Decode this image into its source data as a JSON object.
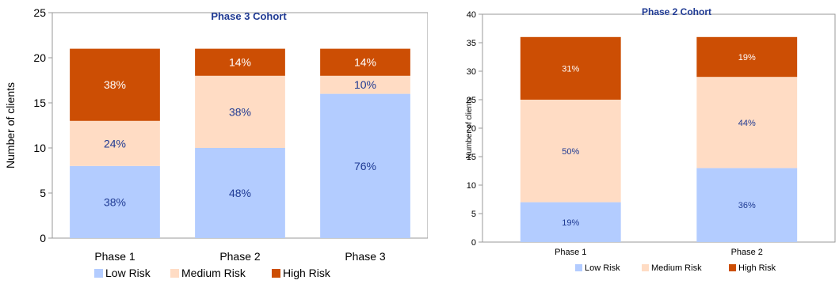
{
  "chart_data": [
    {
      "type": "bar",
      "stacked": true,
      "title": "Phase 3 Cohort",
      "ylabel": "Number of clients",
      "xlabel": "",
      "ylim": [
        0,
        25
      ],
      "yticks": [
        0,
        5,
        10,
        15,
        20,
        25
      ],
      "grid": false,
      "legend_position": "bottom",
      "categories": [
        "Phase 1",
        "Phase 2",
        "Phase 3"
      ],
      "series": [
        {
          "name": "Low Risk",
          "color": "#b3ccff",
          "values": [
            8,
            10,
            16
          ],
          "labels": [
            "38%",
            "48%",
            "76%"
          ]
        },
        {
          "name": "Medium Risk",
          "color": "#ffdcc4",
          "values": [
            5,
            8,
            2
          ],
          "labels": [
            "24%",
            "38%",
            "10%"
          ]
        },
        {
          "name": "High Risk",
          "color": "#cc4e04",
          "values": [
            8,
            3,
            3
          ],
          "labels": [
            "38%",
            "14%",
            "14%"
          ]
        }
      ],
      "label_colors": {
        "Low Risk": "#1f3a93",
        "Medium Risk": "#1f3a93",
        "High Risk": "#ffffff"
      }
    },
    {
      "type": "bar",
      "stacked": true,
      "title": "Phase 2 Cohort",
      "ylabel": "Number of clients",
      "xlabel": "",
      "ylim": [
        0,
        40
      ],
      "yticks": [
        0,
        5,
        10,
        15,
        20,
        25,
        30,
        35,
        40
      ],
      "grid": false,
      "legend_position": "bottom",
      "categories": [
        "Phase 1",
        "Phase 2"
      ],
      "series": [
        {
          "name": "Low Risk",
          "color": "#b3ccff",
          "values": [
            7,
            13
          ],
          "labels": [
            "19%",
            "36%"
          ]
        },
        {
          "name": "Medium Risk",
          "color": "#ffdcc4",
          "values": [
            18,
            16
          ],
          "labels": [
            "50%",
            "44%"
          ]
        },
        {
          "name": "High Risk",
          "color": "#cc4e04",
          "values": [
            11,
            7
          ],
          "labels": [
            "31%",
            "19%"
          ]
        }
      ],
      "label_colors": {
        "Low Risk": "#1f3a93",
        "Medium Risk": "#1f3a93",
        "High Risk": "#ffffff"
      }
    }
  ]
}
